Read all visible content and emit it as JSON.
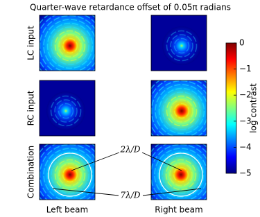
{
  "chart_data": {
    "type": "image",
    "title": "Quarter-wave retardance offset of 0.05π radians",
    "row_labels": [
      "LC input",
      "RC input",
      "Combination"
    ],
    "col_labels": [
      "Left beam",
      "Right beam"
    ],
    "annotations": [
      "2λ/D",
      "7λ/D"
    ],
    "colorbar": {
      "label": "log contrast",
      "lim": [
        -5,
        0
      ],
      "ticks": [
        0,
        {
          "value": -1,
          "label": "−1"
        },
        {
          "value": -2,
          "label": "−2"
        },
        {
          "value": -3,
          "label": "−3"
        },
        {
          "value": -4,
          "label": "−4"
        },
        {
          "value": -5,
          "label": "−5"
        }
      ]
    }
  }
}
